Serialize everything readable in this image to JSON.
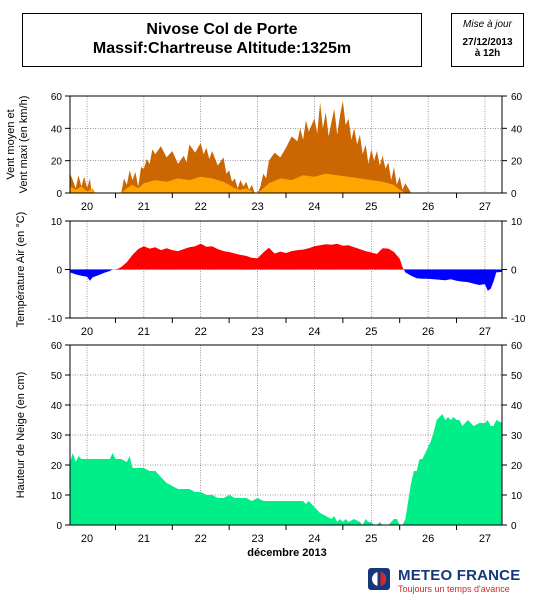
{
  "header": {
    "title_line1": "Nivose Col de Porte",
    "title_line2": "Massif:Chartreuse Altitude:1325m",
    "date_label": "Mise à jour",
    "date_value": "27/12/2013",
    "time_value": "à 12h"
  },
  "footer": {
    "x_axis_title": "décembre 2013",
    "logo_name": "METEO FRANCE",
    "logo_tagline": "Toujours un temps d'avance"
  },
  "colors": {
    "wind_max": "#cc6600",
    "wind_mean": "#ffa500",
    "temp_positive": "#ff0000",
    "temp_negative": "#0000ff",
    "snow": "#00ee88",
    "logo_blue": "#16387a",
    "logo_red": "#d0282c"
  },
  "chart_data": [
    {
      "type": "area",
      "ylabel": "Vent moyen et Vent maxi (en km/h)",
      "ylim": [
        0,
        60
      ],
      "yticks": [
        0,
        20,
        40,
        60
      ],
      "xlim": [
        19.7,
        27.3
      ],
      "xticks": [
        20,
        21,
        22,
        23,
        24,
        25,
        26,
        27
      ],
      "grid": true,
      "series": [
        {
          "role": "max",
          "x": [
            19.7,
            19.75,
            19.8,
            19.85,
            19.9,
            19.95,
            20.0,
            20.05,
            20.08,
            20.1,
            20.15,
            20.3,
            20.4,
            20.5,
            20.6,
            20.65,
            20.7,
            20.75,
            20.8,
            20.85,
            20.9,
            20.95,
            21.0,
            21.05,
            21.1,
            21.15,
            21.2,
            21.3,
            21.4,
            21.5,
            21.6,
            21.7,
            21.75,
            21.8,
            21.9,
            22.0,
            22.05,
            22.1,
            22.15,
            22.2,
            22.3,
            22.4,
            22.45,
            22.5,
            22.55,
            22.6,
            22.65,
            22.7,
            22.75,
            22.8,
            22.85,
            22.9,
            22.95,
            23.0,
            23.05,
            23.1,
            23.15,
            23.2,
            23.3,
            23.4,
            23.5,
            23.6,
            23.7,
            23.75,
            23.8,
            23.85,
            23.9,
            23.95,
            24.0,
            24.05,
            24.1,
            24.15,
            24.2,
            24.25,
            24.3,
            24.35,
            24.4,
            24.45,
            24.5,
            24.55,
            24.6,
            24.65,
            24.7,
            24.75,
            24.8,
            24.85,
            24.9,
            24.95,
            25.0,
            25.05,
            25.1,
            25.15,
            25.2,
            25.25,
            25.3,
            25.35,
            25.4,
            25.45,
            25.5,
            25.55,
            25.6,
            25.7,
            26.0,
            26.5,
            27.0,
            27.3
          ],
          "values": [
            12,
            8,
            3,
            11,
            4,
            10,
            3,
            9,
            0,
            0,
            0,
            0,
            0,
            0,
            0,
            9,
            5,
            14,
            8,
            13,
            4,
            16,
            15,
            21,
            18,
            27,
            24,
            29,
            22,
            26,
            18,
            23,
            19,
            30,
            25,
            31,
            24,
            28,
            21,
            26,
            17,
            22,
            12,
            14,
            7,
            9,
            3,
            8,
            4,
            7,
            2,
            5,
            0,
            0,
            4,
            12,
            9,
            20,
            25,
            22,
            28,
            35,
            32,
            40,
            33,
            45,
            38,
            42,
            46,
            37,
            56,
            40,
            50,
            35,
            44,
            52,
            36,
            48,
            57,
            42,
            46,
            33,
            40,
            30,
            36,
            24,
            30,
            18,
            27,
            20,
            26,
            17,
            23,
            15,
            19,
            8,
            16,
            5,
            10,
            2,
            6,
            0,
            0,
            0,
            0,
            0
          ]
        },
        {
          "role": "mean",
          "x": [
            19.7,
            19.8,
            19.9,
            20.0,
            20.1,
            20.15,
            20.6,
            20.7,
            20.8,
            20.9,
            21.0,
            21.2,
            21.4,
            21.6,
            21.8,
            22.0,
            22.2,
            22.4,
            22.5,
            22.6,
            22.7,
            22.8,
            22.9,
            22.95,
            23.0,
            23.1,
            23.2,
            23.4,
            23.6,
            23.8,
            24.0,
            24.2,
            24.4,
            24.6,
            24.8,
            25.0,
            25.2,
            25.4,
            25.5,
            25.6,
            25.7,
            26.0,
            27.0,
            27.3
          ],
          "values": [
            4,
            2,
            4,
            1,
            3,
            0,
            0,
            3,
            5,
            3,
            6,
            8,
            7,
            9,
            8,
            10,
            9,
            7,
            5,
            3,
            2,
            3,
            1,
            0,
            0,
            3,
            6,
            9,
            8,
            11,
            10,
            12,
            11,
            10,
            9,
            8,
            7,
            5,
            2,
            0,
            0,
            0,
            0,
            0
          ]
        }
      ]
    },
    {
      "type": "area",
      "ylabel": "Température Air (en °C)",
      "ylim": [
        -10,
        10
      ],
      "yticks": [
        -10,
        0,
        10
      ],
      "xlim": [
        19.7,
        27.3
      ],
      "xticks": [
        20,
        21,
        22,
        23,
        24,
        25,
        26,
        27
      ],
      "grid": true,
      "series": [
        {
          "name": "temperature",
          "x": [
            19.7,
            19.8,
            19.9,
            20.0,
            20.05,
            20.1,
            20.2,
            20.3,
            20.4,
            20.45,
            20.5,
            20.55,
            20.6,
            20.7,
            20.8,
            20.9,
            21.0,
            21.1,
            21.2,
            21.3,
            21.4,
            21.5,
            21.6,
            21.7,
            21.8,
            21.9,
            22.0,
            22.1,
            22.2,
            22.3,
            22.4,
            22.5,
            22.6,
            22.7,
            22.8,
            22.9,
            23.0,
            23.1,
            23.2,
            23.3,
            23.4,
            23.5,
            23.6,
            23.7,
            23.8,
            23.9,
            24.0,
            24.1,
            24.2,
            24.3,
            24.4,
            24.5,
            24.6,
            24.7,
            24.8,
            24.9,
            25.0,
            25.1,
            25.2,
            25.3,
            25.4,
            25.5,
            25.55,
            25.6,
            25.7,
            25.8,
            25.9,
            26.0,
            26.1,
            26.2,
            26.3,
            26.4,
            26.5,
            26.6,
            26.7,
            26.8,
            26.9,
            27.0,
            27.05,
            27.1,
            27.15,
            27.2,
            27.3
          ],
          "values": [
            -0.6,
            -1.0,
            -1.3,
            -1.5,
            -2.3,
            -1.6,
            -1.2,
            -0.7,
            -0.3,
            0.0,
            0.0,
            0.2,
            0.5,
            1.5,
            3.0,
            4.2,
            4.8,
            4.3,
            4.6,
            4.0,
            4.4,
            4.0,
            3.8,
            4.2,
            4.6,
            4.8,
            5.3,
            4.7,
            4.8,
            4.2,
            3.8,
            3.6,
            3.3,
            3.0,
            2.8,
            2.4,
            2.3,
            3.5,
            4.5,
            3.3,
            3.7,
            3.4,
            3.8,
            4.0,
            4.1,
            4.4,
            4.8,
            5.0,
            5.2,
            5.1,
            5.3,
            4.9,
            5.0,
            4.6,
            4.2,
            3.8,
            3.5,
            3.2,
            4.4,
            4.3,
            3.6,
            2.2,
            0.5,
            -0.6,
            -1.3,
            -1.8,
            -1.9,
            -1.9,
            -2.0,
            -2.1,
            -2.2,
            -2.0,
            -2.3,
            -2.5,
            -2.6,
            -2.9,
            -3.2,
            -3.0,
            -4.4,
            -4.0,
            -2.5,
            -0.6,
            -0.5
          ]
        }
      ]
    },
    {
      "type": "area",
      "ylabel": "Hauteur de Neige (en cm)",
      "xlabel": "décembre 2013",
      "ylim": [
        0,
        60
      ],
      "yticks": [
        0,
        10,
        20,
        30,
        40,
        50,
        60
      ],
      "xlim": [
        19.7,
        27.3
      ],
      "xticks": [
        20,
        21,
        22,
        23,
        24,
        25,
        26,
        27
      ],
      "grid": true,
      "series": [
        {
          "name": "snow_depth",
          "x": [
            19.7,
            19.75,
            19.8,
            19.85,
            19.9,
            20.0,
            20.3,
            20.4,
            20.45,
            20.5,
            20.6,
            20.7,
            20.75,
            20.8,
            20.9,
            21.0,
            21.1,
            21.2,
            21.3,
            21.4,
            21.5,
            21.6,
            21.7,
            21.8,
            21.9,
            22.0,
            22.1,
            22.2,
            22.3,
            22.4,
            22.5,
            22.6,
            22.7,
            22.8,
            22.9,
            23.0,
            23.1,
            23.2,
            23.3,
            23.4,
            23.5,
            23.6,
            23.7,
            23.8,
            23.85,
            23.9,
            23.95,
            24.0,
            24.05,
            24.1,
            24.2,
            24.3,
            24.35,
            24.4,
            24.45,
            24.5,
            24.55,
            24.6,
            24.7,
            24.8,
            24.85,
            24.9,
            24.95,
            25.0,
            25.05,
            25.1,
            25.15,
            25.2,
            25.25,
            25.3,
            25.35,
            25.4,
            25.45,
            25.5,
            25.55,
            25.6,
            25.65,
            25.7,
            25.75,
            25.8,
            25.85,
            25.9,
            25.95,
            26.0,
            26.05,
            26.1,
            26.15,
            26.2,
            26.25,
            26.3,
            26.35,
            26.4,
            26.45,
            26.5,
            26.55,
            26.6,
            26.65,
            26.7,
            26.75,
            26.8,
            26.9,
            27.0,
            27.05,
            27.1,
            27.15,
            27.2,
            27.3
          ],
          "values": [
            21,
            24,
            21,
            23,
            22,
            22,
            22,
            22,
            24,
            22,
            22,
            21,
            23,
            19,
            19,
            19,
            18,
            18,
            16,
            14,
            13,
            12,
            12,
            12,
            11,
            11,
            10,
            10,
            9,
            9,
            10,
            9,
            9,
            9,
            8,
            9,
            8,
            8,
            8,
            8,
            8,
            8,
            8,
            8,
            7,
            8,
            7,
            6,
            5,
            4,
            3,
            2,
            3,
            1,
            2,
            1,
            2,
            1,
            2,
            1,
            0,
            2,
            1,
            1,
            0,
            0,
            1,
            0,
            0,
            0,
            1,
            2,
            2,
            0,
            0,
            2,
            8,
            14,
            18,
            18,
            22,
            22,
            24,
            26,
            28,
            31,
            35,
            36,
            37,
            35,
            36,
            35,
            36,
            35,
            35,
            33,
            34,
            35,
            34,
            33,
            34,
            34,
            35,
            33,
            33,
            35,
            34
          ]
        }
      ]
    }
  ]
}
